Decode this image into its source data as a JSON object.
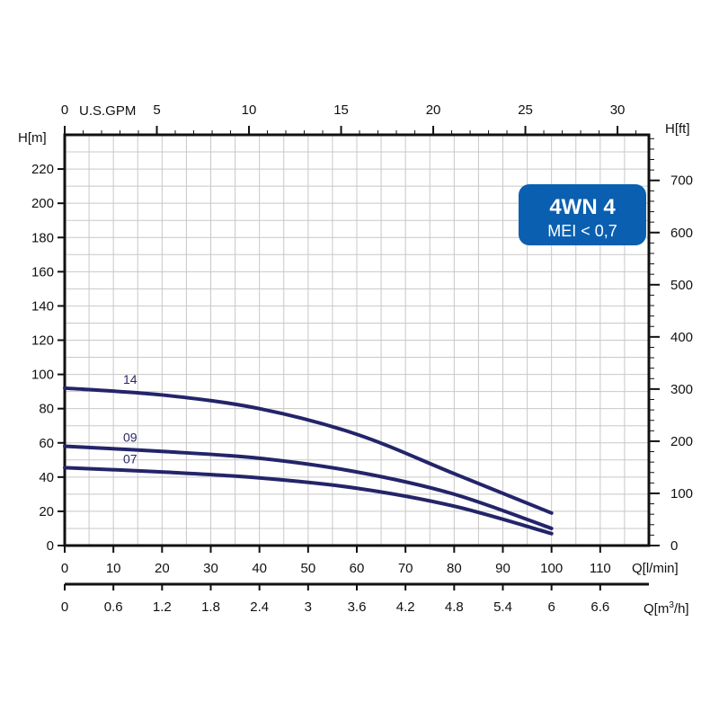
{
  "chart_data": {
    "type": "line",
    "title": "",
    "badge": {
      "title": "4WN 4",
      "subtitle": "MEI < 0,7",
      "color": "#0a5fb0"
    },
    "x": [
      0,
      20,
      40,
      60,
      80,
      100
    ],
    "xlabel": "Q[l/min]",
    "ylabel": "H[m]",
    "xlim": [
      0,
      120
    ],
    "ylim": [
      0,
      240
    ],
    "xticks": [
      0,
      10,
      20,
      30,
      40,
      50,
      60,
      70,
      80,
      90,
      100,
      110
    ],
    "yticks": [
      0,
      20,
      40,
      60,
      80,
      100,
      120,
      140,
      160,
      180,
      200,
      220
    ],
    "grid": true,
    "series": [
      {
        "name": "14",
        "values": [
          92,
          88,
          80,
          65,
          42,
          19
        ]
      },
      {
        "name": "09",
        "values": [
          58,
          55,
          51,
          43,
          30,
          10
        ]
      },
      {
        "name": "07",
        "values": [
          45.5,
          43,
          39.5,
          33.5,
          23,
          7
        ]
      }
    ],
    "line_color": "#24246a",
    "secondary_axes": {
      "top": {
        "label": "U.S.GPM",
        "ticks": [
          0,
          5,
          10,
          15,
          20,
          25,
          30
        ],
        "per_primary": 0.2642
      },
      "right": {
        "label": "H[ft]",
        "ticks": [
          0,
          100,
          200,
          300,
          400,
          500,
          600,
          700
        ],
        "per_primary": 3.2808
      },
      "bottom": {
        "label": "Q[m³/h]",
        "label_main": "Q[m",
        "label_sup": "3",
        "label_end": "/h]",
        "ticks": [
          "0",
          "0.6",
          "1.2",
          "1.8",
          "2.4",
          "3",
          "3.6",
          "4.2",
          "4.8",
          "5.4",
          "6",
          "6.6"
        ]
      }
    }
  }
}
